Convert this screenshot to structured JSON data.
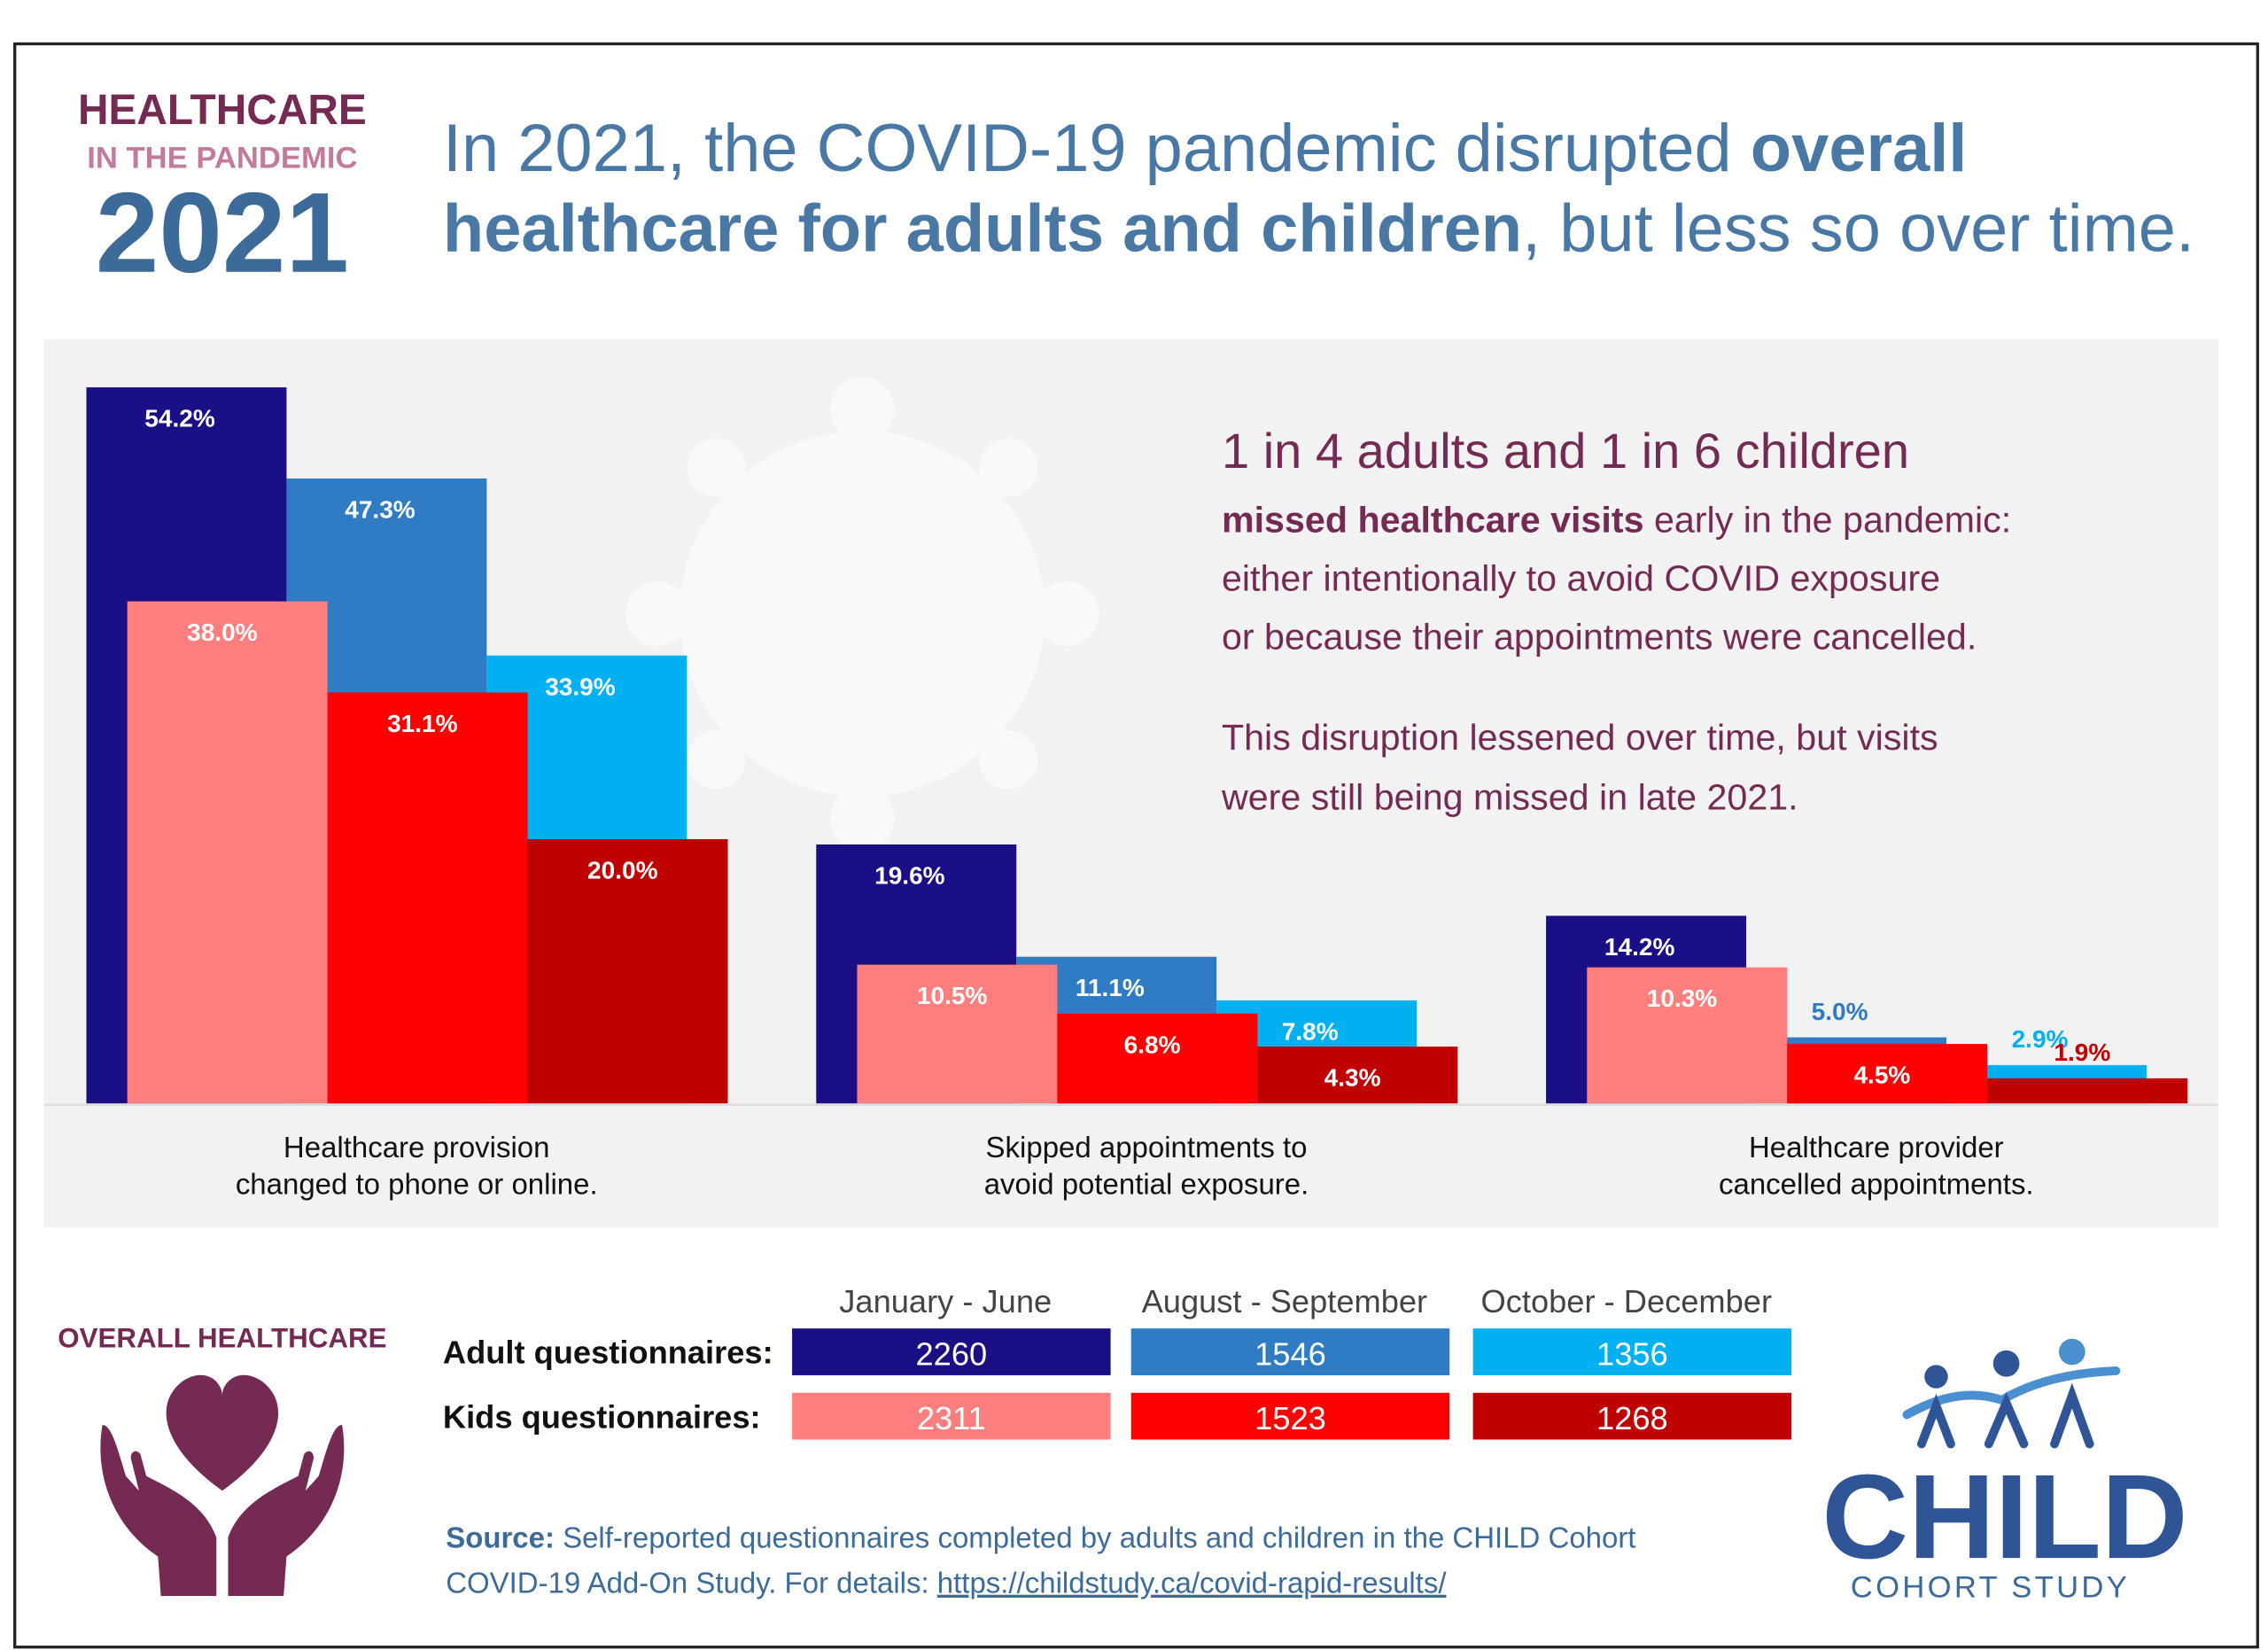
{
  "header": {
    "kicker": "HEALTHCARE",
    "subkicker": "IN THE PANDEMIC",
    "year": "2021"
  },
  "headline": {
    "lines": [
      [
        {
          "text": "In 2021, the COVID-19 pandemic disrupted "
        },
        {
          "text": "overall",
          "bold": true
        }
      ],
      [
        {
          "text": "healthcare for adults and children",
          "bold": true
        },
        {
          "text": ", but less so over time."
        }
      ]
    ]
  },
  "chart_data": {
    "type": "bar",
    "categories": [
      [
        "Healthcare provision",
        "changed to phone or online."
      ],
      [
        "Skipped appointments to",
        "avoid potential exposure."
      ],
      [
        "Healthcare provider",
        "cancelled appointments."
      ]
    ],
    "series": [
      {
        "color": "#1a0f85",
        "values": [
          54.2,
          19.6,
          14.2
        ],
        "value_labels": [
          "54.2%",
          "19.6%",
          "14.2%"
        ]
      },
      {
        "color": "#2f7bc4",
        "values": [
          47.3,
          11.1,
          5.0
        ],
        "value_labels": [
          "47.3%",
          "11.1%",
          "5.0%"
        ]
      },
      {
        "color": "#00b0f0",
        "values": [
          33.9,
          7.8,
          2.9
        ],
        "value_labels": [
          "33.9%",
          "7.8%",
          "2.9%"
        ]
      },
      {
        "color": "#ff7f7f",
        "values": [
          38.0,
          10.5,
          10.3
        ],
        "value_labels": [
          "38.0%",
          "10.5%",
          "10.3%"
        ]
      },
      {
        "color": "#ff0000",
        "values": [
          31.1,
          6.8,
          4.5
        ],
        "value_labels": [
          "31.1%",
          "6.8%",
          "4.5%"
        ]
      },
      {
        "color": "#c00000",
        "values": [
          20.0,
          4.3,
          1.9
        ],
        "value_labels": [
          "20.0%",
          "4.3%",
          "1.9%"
        ]
      }
    ]
  },
  "callout": {
    "title": "1 in 4 adults and 1 in 6 children",
    "paragraph1": [
      [
        {
          "text": "missed healthcare visits",
          "bold": true
        },
        {
          "text": " early in the pandemic:"
        }
      ],
      [
        {
          "text": "either intentionally to avoid COVID exposure"
        }
      ],
      [
        {
          "text": "or because their appointments were cancelled."
        }
      ]
    ],
    "paragraph2": [
      [
        {
          "text": "This disruption lessened over time, but visits"
        }
      ],
      [
        {
          "text": "were still being missed in late 2021."
        }
      ]
    ]
  },
  "footer": {
    "overall_label": "OVERALL HEALTHCARE",
    "table": {
      "columns": [
        "January - June",
        "August - September",
        "October - December"
      ],
      "rows": [
        {
          "label": "Adult questionnaires:",
          "values": [
            2260,
            1546,
            1356
          ]
        },
        {
          "label": "Kids questionnaires:",
          "values": [
            2311,
            1523,
            1268
          ]
        }
      ]
    },
    "source": [
      [
        {
          "text": "Source:",
          "bold": true
        },
        {
          "text": " Self-reported questionnaires completed by adults and children in the CHILD Cohort"
        }
      ],
      [
        {
          "text": "COVID-19 Add-On Study. For details: "
        },
        {
          "text": "https://childstudy.ca/covid-rapid-results/",
          "link": true
        }
      ]
    ],
    "logo": {
      "name": "CHILD",
      "subtitle": "COHORT STUDY"
    }
  }
}
